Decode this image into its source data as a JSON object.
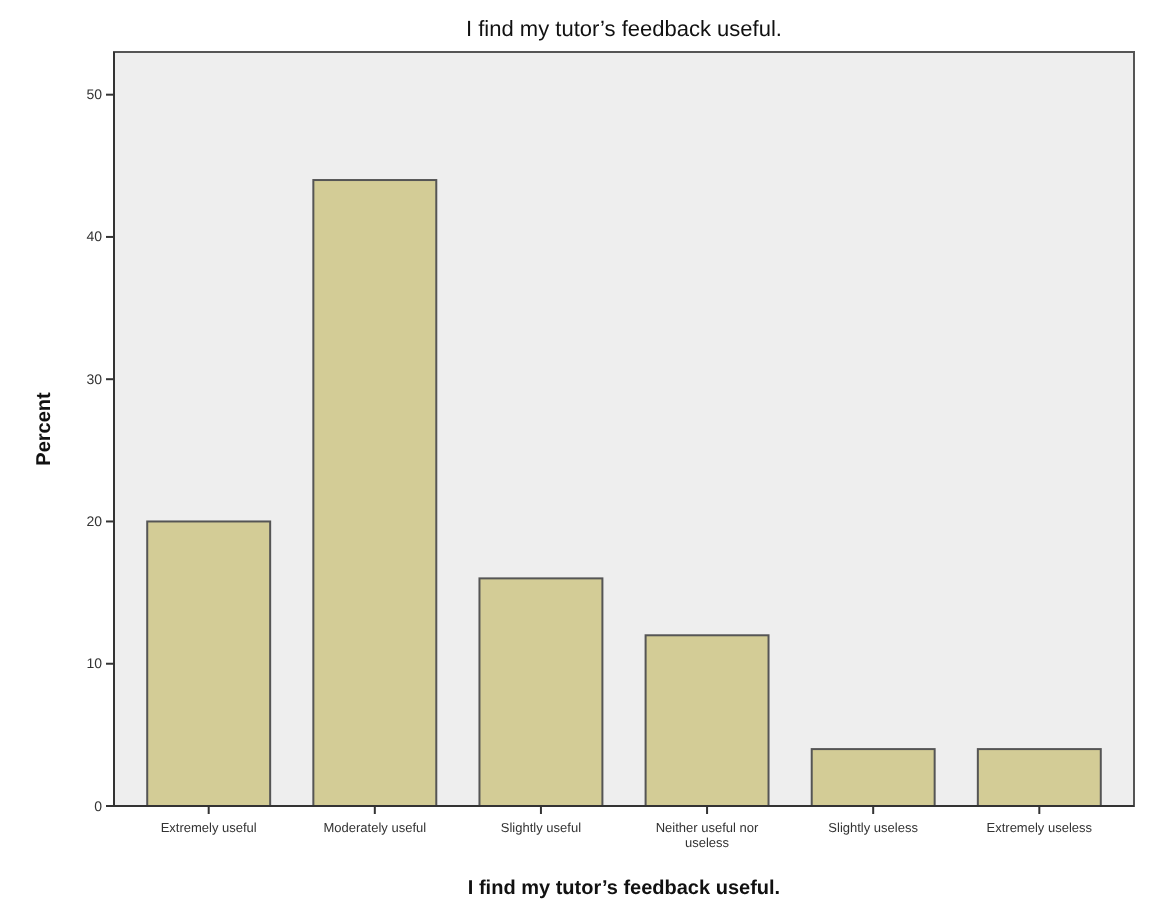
{
  "chart_data": {
    "type": "bar",
    "title": "I find my tutor’s feedback useful.",
    "xlabel": "I find my tutor’s feedback useful.",
    "ylabel": "Percent",
    "categories": [
      "Extremely useful",
      "Moderately useful",
      "Slightly useful",
      "Neither useful nor useless",
      "Slightly useless",
      "Extremely useless"
    ],
    "values": [
      20,
      44,
      16,
      12,
      4,
      4
    ],
    "color": "#d3cc96",
    "ylim": [
      0,
      53
    ],
    "yticks": [
      0,
      10,
      20,
      30,
      40,
      50
    ],
    "grid": false
  }
}
